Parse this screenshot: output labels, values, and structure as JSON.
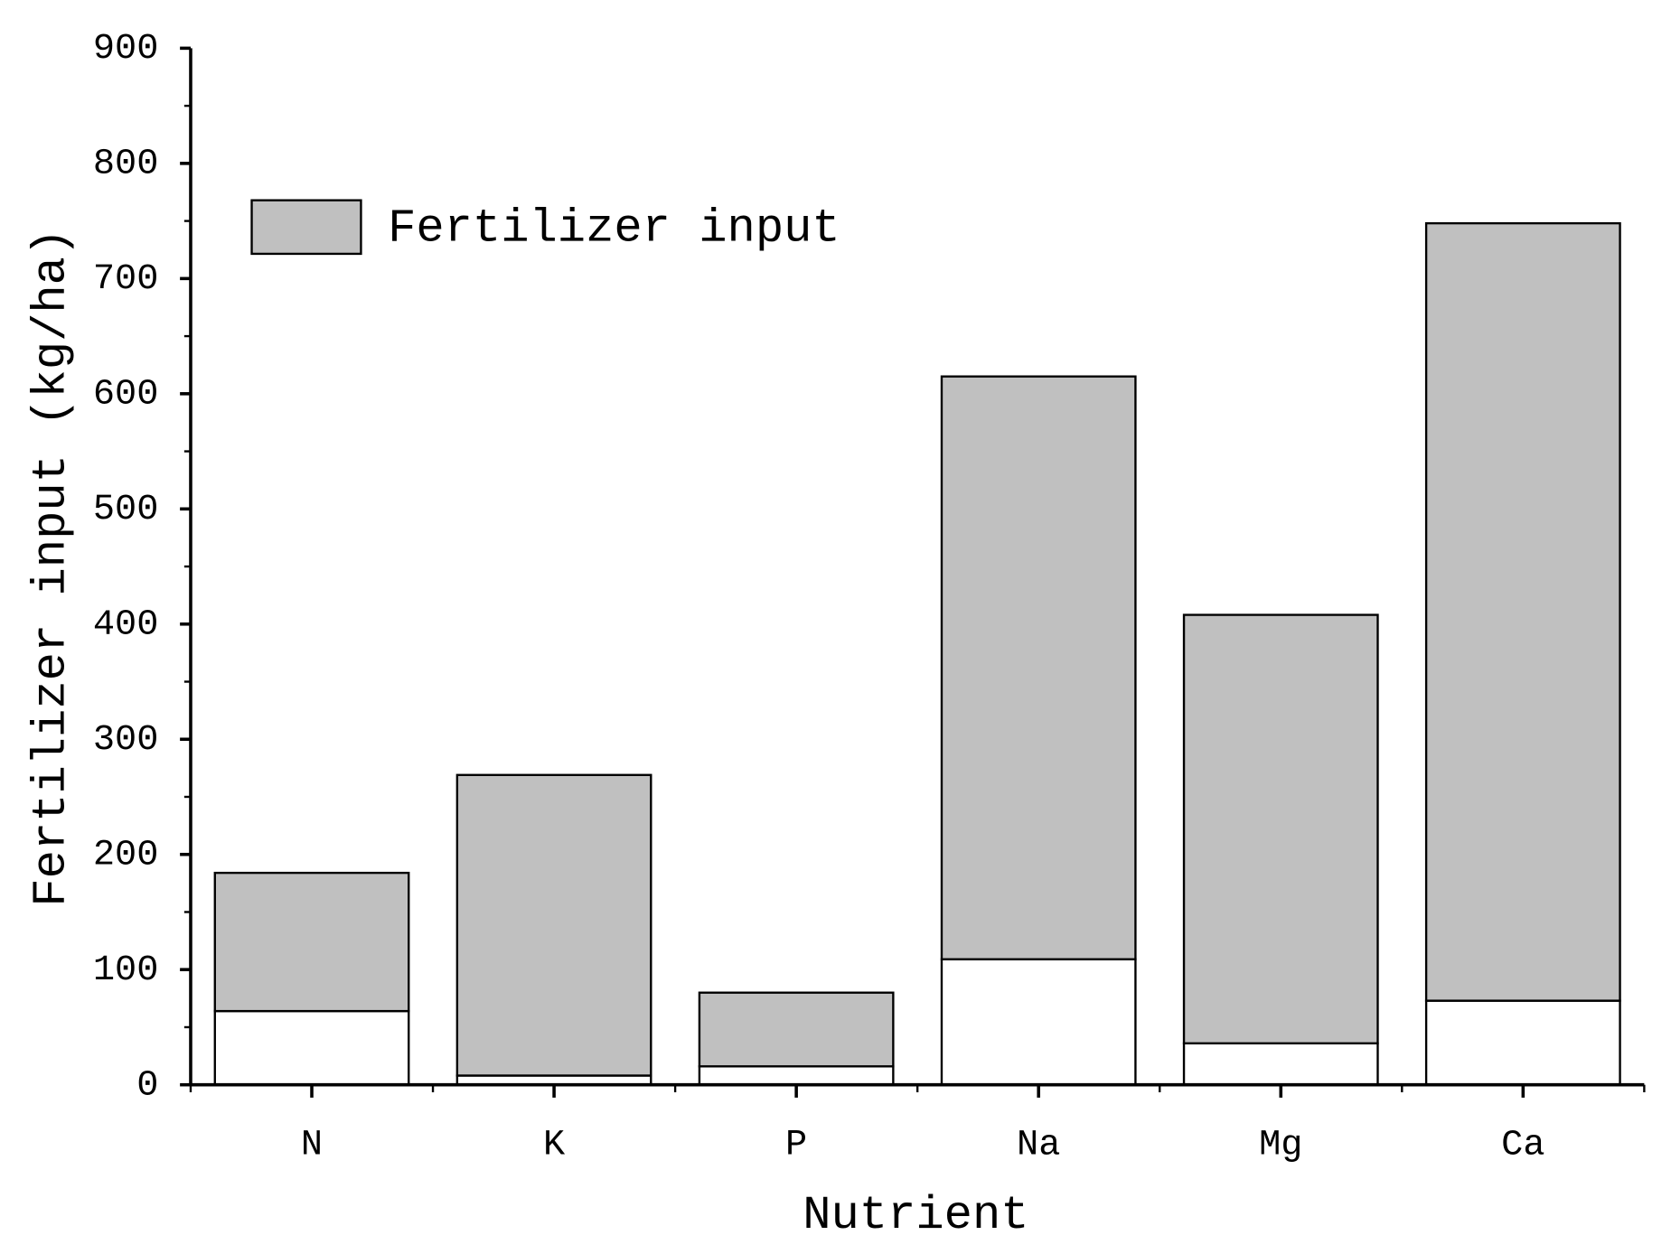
{
  "chart_data": {
    "type": "stacked_bar",
    "xlabel": "Nutrient",
    "ylabel": "Fertilizer input (kg/ha)",
    "categories": [
      "N",
      "K",
      "P",
      "Na",
      "Mg",
      "Ca"
    ],
    "series": [
      {
        "color": "#ffffff",
        "values": [
          64,
          8,
          16,
          109,
          36,
          73
        ]
      },
      {
        "name": "Fertilizer input",
        "color": "#c0c0c0",
        "values": [
          120,
          261,
          64,
          506,
          372,
          675
        ]
      }
    ],
    "ylim": [
      0,
      900
    ],
    "yticks": [
      0,
      100,
      200,
      300,
      400,
      500,
      600,
      700,
      800,
      900
    ],
    "legend": "upper left"
  }
}
